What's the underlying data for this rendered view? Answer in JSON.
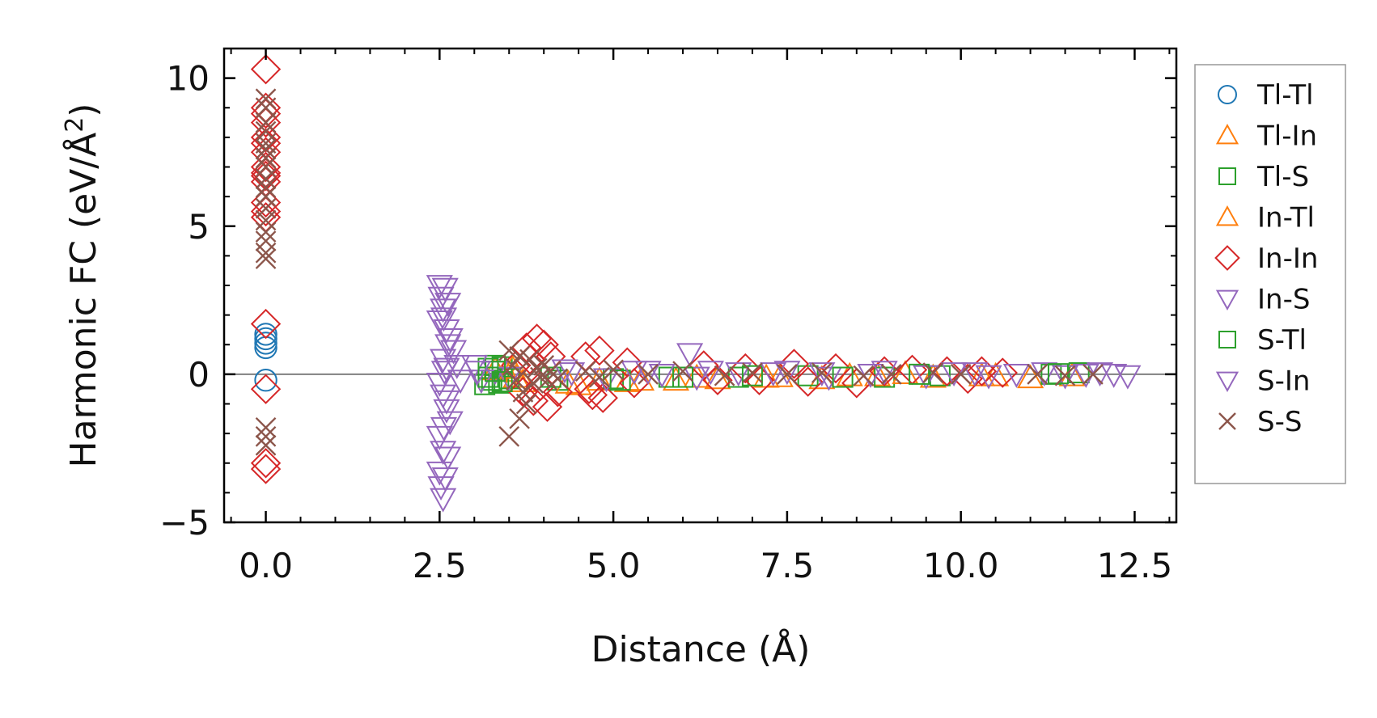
{
  "chart_data": {
    "type": "scatter",
    "title": "",
    "xlabel": "Distance (Å)",
    "ylabel_prefix": "Harmonic FC (eV/Å",
    "ylabel_sup": "2",
    "ylabel_suffix": ")",
    "xlim": [
      -0.6,
      13.1
    ],
    "ylim": [
      -5,
      11
    ],
    "xticks": [
      0.0,
      2.5,
      5.0,
      7.5,
      10.0,
      12.5
    ],
    "xtick_labels": [
      "0.0",
      "2.5",
      "5.0",
      "7.5",
      "10.0",
      "12.5"
    ],
    "yticks": [
      -5,
      0,
      5,
      10
    ],
    "ytick_labels": [
      "−5",
      "0",
      "5",
      "10"
    ],
    "zero_line": 0,
    "legend_position": "right outside",
    "series": [
      {
        "name": "Tl-Tl",
        "marker": "circle",
        "color": "#1f77b4",
        "points": [
          [
            0,
            1.35
          ],
          [
            0,
            1.2
          ],
          [
            0,
            1.05
          ],
          [
            0,
            0.9
          ],
          [
            0,
            -0.2
          ]
        ]
      },
      {
        "name": "Tl-In",
        "marker": "triangle-up",
        "color": "#ff7f0e",
        "points": [
          [
            3.3,
            0.15
          ],
          [
            3.45,
            0.1
          ],
          [
            3.6,
            -0.1
          ],
          [
            4.5,
            -0.35
          ],
          [
            4.8,
            -0.2
          ],
          [
            5.2,
            -0.25
          ],
          [
            5.9,
            -0.2
          ],
          [
            6.5,
            -0.15
          ],
          [
            7.2,
            -0.1
          ],
          [
            8.0,
            -0.15
          ],
          [
            8.8,
            -0.05
          ],
          [
            9.6,
            -0.1
          ],
          [
            10.3,
            -0.05
          ],
          [
            11.0,
            -0.12
          ],
          [
            11.6,
            -0.05
          ]
        ]
      },
      {
        "name": "Tl-S",
        "marker": "square",
        "color": "#2ca02c",
        "points": [
          [
            3.15,
            -0.35
          ],
          [
            3.2,
            0.2
          ],
          [
            3.25,
            -0.2
          ],
          [
            3.3,
            0.3
          ],
          [
            3.35,
            -0.3
          ],
          [
            3.4,
            0.25
          ],
          [
            3.5,
            -0.15
          ],
          [
            4.2,
            -0.2
          ],
          [
            5.0,
            -0.15
          ],
          [
            5.8,
            -0.1
          ],
          [
            6.8,
            -0.1
          ],
          [
            7.8,
            -0.05
          ],
          [
            8.9,
            -0.1
          ],
          [
            9.7,
            -0.05
          ],
          [
            11.3,
            0.0
          ],
          [
            11.7,
            0.05
          ]
        ]
      },
      {
        "name": "In-Tl",
        "marker": "triangle-up",
        "color": "#ff7f0e",
        "points": [
          [
            3.55,
            0.2
          ],
          [
            3.7,
            -0.25
          ],
          [
            4.35,
            -0.3
          ],
          [
            5.4,
            -0.2
          ],
          [
            6.2,
            -0.1
          ],
          [
            7.4,
            -0.08
          ],
          [
            8.4,
            -0.05
          ],
          [
            9.2,
            0.02
          ],
          [
            10.5,
            -0.05
          ]
        ]
      },
      {
        "name": "In-In",
        "marker": "diamond",
        "color": "#d62728",
        "points": [
          [
            0,
            10.3
          ],
          [
            0,
            9.0
          ],
          [
            0,
            8.8
          ],
          [
            0,
            8.5
          ],
          [
            0,
            8.0
          ],
          [
            0,
            7.8
          ],
          [
            0,
            7.5
          ],
          [
            0,
            7.0
          ],
          [
            0,
            6.8
          ],
          [
            0,
            6.7
          ],
          [
            0,
            6.5
          ],
          [
            0,
            5.8
          ],
          [
            0,
            5.5
          ],
          [
            0,
            5.3
          ],
          [
            0,
            1.7
          ],
          [
            0,
            -0.5
          ],
          [
            0,
            -3.0
          ],
          [
            0,
            -3.2
          ],
          [
            3.6,
            0.3
          ],
          [
            3.7,
            -0.6
          ],
          [
            3.75,
            0.9
          ],
          [
            3.8,
            0.5
          ],
          [
            3.85,
            -0.9
          ],
          [
            3.9,
            1.2
          ],
          [
            3.95,
            -0.4
          ],
          [
            4.0,
            1.0
          ],
          [
            4.05,
            -1.1
          ],
          [
            4.1,
            0.6
          ],
          [
            4.2,
            -0.6
          ],
          [
            4.6,
            0.6
          ],
          [
            4.65,
            -0.5
          ],
          [
            4.7,
            -0.7
          ],
          [
            4.8,
            0.8
          ],
          [
            4.85,
            -0.8
          ],
          [
            5.2,
            0.4
          ],
          [
            5.3,
            -0.3
          ],
          [
            6.3,
            0.3
          ],
          [
            6.5,
            -0.2
          ],
          [
            6.9,
            0.2
          ],
          [
            7.1,
            -0.2
          ],
          [
            7.6,
            0.35
          ],
          [
            7.8,
            -0.25
          ],
          [
            8.2,
            0.2
          ],
          [
            8.5,
            -0.3
          ],
          [
            8.9,
            0.1
          ],
          [
            9.3,
            0.15
          ],
          [
            9.8,
            0.1
          ],
          [
            10.1,
            -0.15
          ],
          [
            10.3,
            0.1
          ],
          [
            10.6,
            0.05
          ]
        ]
      },
      {
        "name": "In-S",
        "marker": "triangle-down",
        "color": "#9467bd",
        "points": [
          [
            2.5,
            3.0
          ],
          [
            2.52,
            2.6
          ],
          [
            2.55,
            2.2
          ],
          [
            2.5,
            1.8
          ],
          [
            2.6,
            1.5
          ],
          [
            2.65,
            1.2
          ],
          [
            2.7,
            0.8
          ],
          [
            2.55,
            0.5
          ],
          [
            2.6,
            0.2
          ],
          [
            2.5,
            -0.3
          ],
          [
            2.55,
            -0.7
          ],
          [
            2.6,
            -1.2
          ],
          [
            2.65,
            -1.6
          ],
          [
            2.5,
            -2.1
          ],
          [
            2.55,
            -2.6
          ],
          [
            2.5,
            -3.3
          ],
          [
            2.52,
            -3.8
          ],
          [
            2.55,
            -4.2
          ],
          [
            2.75,
            0.3
          ],
          [
            2.8,
            -0.2
          ],
          [
            3.0,
            0.3
          ],
          [
            3.1,
            -0.2
          ],
          [
            3.3,
            0.1
          ],
          [
            3.5,
            -0.1
          ],
          [
            4.4,
            0.05
          ],
          [
            4.9,
            -0.15
          ],
          [
            5.5,
            0.1
          ],
          [
            6.1,
            0.7
          ],
          [
            6.2,
            -0.1
          ],
          [
            6.8,
            0.05
          ],
          [
            7.5,
            0.1
          ],
          [
            8.1,
            -0.1
          ],
          [
            8.9,
            0.1
          ],
          [
            9.5,
            -0.05
          ],
          [
            10.2,
            0.05
          ],
          [
            10.8,
            0.0
          ],
          [
            11.2,
            0.05
          ],
          [
            11.5,
            -0.05
          ],
          [
            12.0,
            0.05
          ],
          [
            12.2,
            0.0
          ],
          [
            12.4,
            -0.05
          ]
        ]
      },
      {
        "name": "S-Tl",
        "marker": "square",
        "color": "#2ca02c",
        "points": [
          [
            3.2,
            -0.1
          ],
          [
            3.3,
            0.1
          ],
          [
            3.4,
            -0.25
          ],
          [
            4.1,
            -0.1
          ],
          [
            5.1,
            -0.2
          ],
          [
            6.0,
            -0.1
          ],
          [
            7.0,
            -0.05
          ],
          [
            8.3,
            -0.1
          ],
          [
            9.4,
            0.0
          ],
          [
            11.4,
            0.02
          ]
        ]
      },
      {
        "name": "S-In",
        "marker": "triangle-down",
        "color": "#9467bd",
        "points": [
          [
            2.58,
            2.9
          ],
          [
            2.62,
            2.4
          ],
          [
            2.56,
            1.9
          ],
          [
            2.62,
            1.0
          ],
          [
            2.57,
            0.1
          ],
          [
            2.6,
            -0.9
          ],
          [
            2.56,
            -1.8
          ],
          [
            2.62,
            -2.8
          ],
          [
            2.58,
            -3.5
          ],
          [
            3.05,
            0.1
          ],
          [
            4.3,
            0.15
          ],
          [
            5.3,
            0.1
          ],
          [
            5.7,
            0.0
          ],
          [
            6.4,
            0.1
          ],
          [
            7.3,
            0.05
          ],
          [
            8.0,
            0.05
          ],
          [
            8.7,
            0.0
          ],
          [
            9.9,
            0.05
          ],
          [
            10.4,
            -0.05
          ],
          [
            11.8,
            0.0
          ]
        ]
      },
      {
        "name": "S-S",
        "marker": "x",
        "color": "#8c564b",
        "points": [
          [
            0,
            9.3
          ],
          [
            0,
            9.0
          ],
          [
            0,
            8.5
          ],
          [
            0,
            8.2
          ],
          [
            0,
            7.8
          ],
          [
            0,
            7.6
          ],
          [
            0,
            7.3
          ],
          [
            0,
            7.0
          ],
          [
            0,
            6.6
          ],
          [
            0,
            6.3
          ],
          [
            0,
            6.0
          ],
          [
            0,
            5.6
          ],
          [
            0,
            5.2
          ],
          [
            0,
            4.8
          ],
          [
            0,
            4.5
          ],
          [
            0,
            4.1
          ],
          [
            0,
            3.9
          ],
          [
            0,
            -1.8
          ],
          [
            0,
            -2.1
          ],
          [
            0,
            -2.4
          ],
          [
            3.5,
            0.8
          ],
          [
            3.55,
            0.3
          ],
          [
            3.6,
            -0.2
          ],
          [
            3.65,
            0.6
          ],
          [
            3.7,
            -0.6
          ],
          [
            3.5,
            -2.1
          ],
          [
            3.65,
            -1.5
          ],
          [
            3.75,
            -1.0
          ],
          [
            3.8,
            0.5
          ],
          [
            3.85,
            -0.3
          ],
          [
            3.9,
            0.2
          ],
          [
            3.95,
            -0.1
          ],
          [
            4.0,
            0.3
          ],
          [
            4.05,
            -0.2
          ],
          [
            4.1,
            0.1
          ],
          [
            4.2,
            -0.15
          ],
          [
            4.6,
            0.1
          ],
          [
            4.8,
            -0.1
          ],
          [
            5.0,
            0.15
          ],
          [
            5.5,
            0.0
          ],
          [
            6.0,
            0.1
          ],
          [
            6.6,
            -0.05
          ],
          [
            7.0,
            0.05
          ],
          [
            7.5,
            0.0
          ],
          [
            8.0,
            0.05
          ],
          [
            8.6,
            -0.05
          ],
          [
            9.0,
            0.0
          ],
          [
            9.6,
            0.05
          ],
          [
            10.0,
            0.0
          ],
          [
            11.1,
            0.0
          ],
          [
            11.5,
            -0.05
          ],
          [
            11.9,
            0.0
          ]
        ]
      }
    ]
  }
}
